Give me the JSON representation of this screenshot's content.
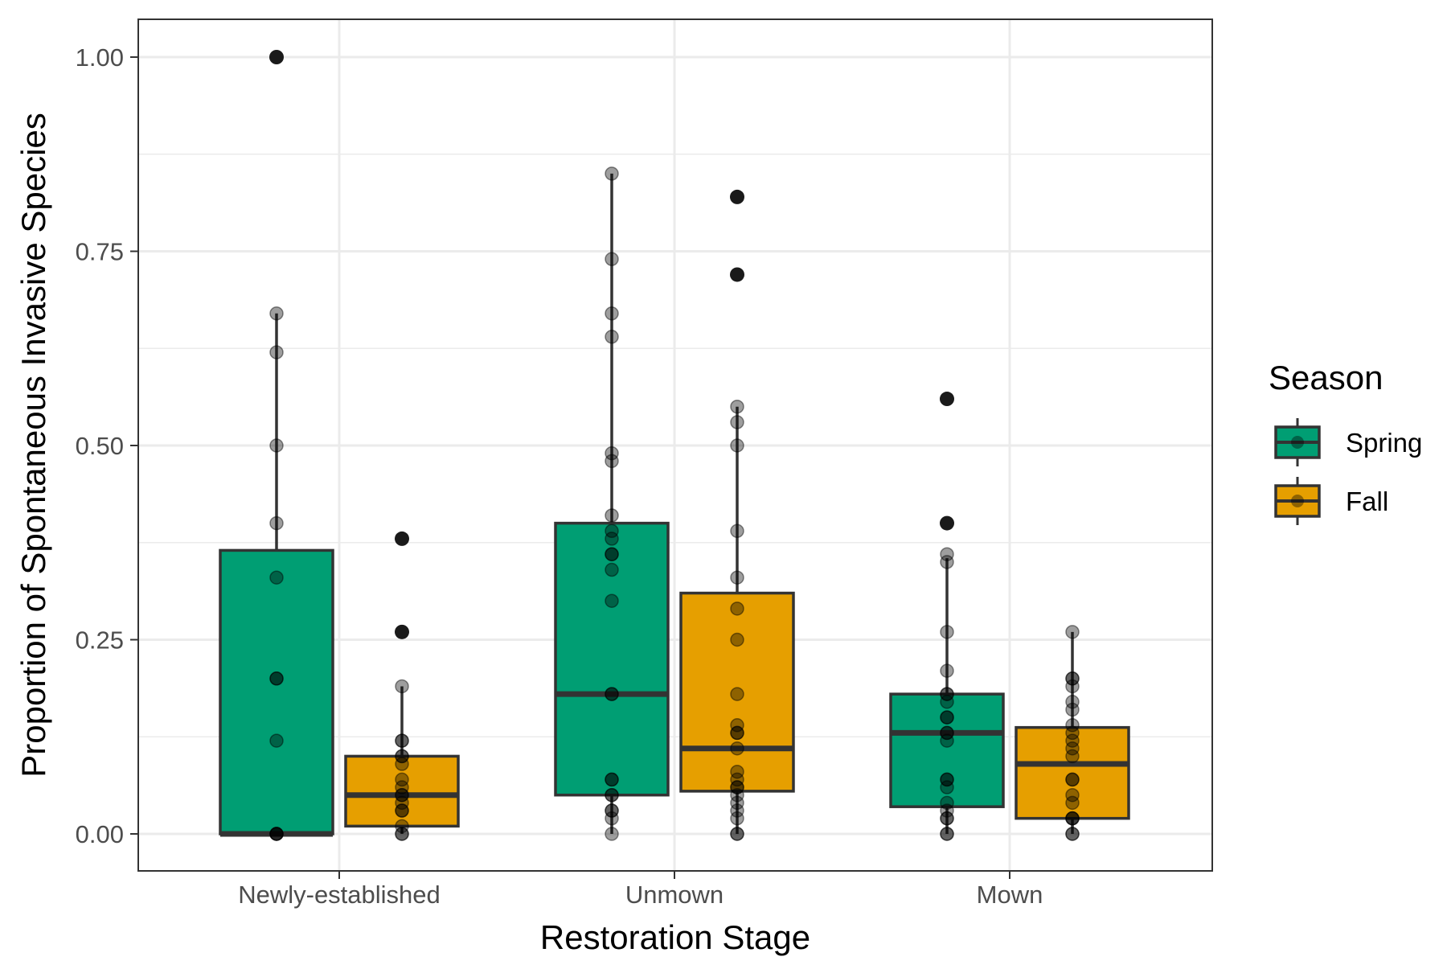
{
  "chart_data": {
    "type": "box",
    "xlabel": "Restoration Stage",
    "ylabel": "Proportion of Spontaneous Invasive Species",
    "categories": [
      "Newly-established",
      "Unmown",
      "Mown"
    ],
    "ylim": [
      -0.05,
      1.05
    ],
    "yticks": [
      0,
      0.25,
      0.5,
      0.75,
      1.0
    ],
    "ytick_labels": [
      "0.00",
      "0.25",
      "0.50",
      "0.75",
      "1.00"
    ],
    "grid": true,
    "legend": {
      "title": "Season",
      "position": "right"
    },
    "series": [
      {
        "name": "Spring",
        "color": "#009E73",
        "boxes": [
          {
            "category": "Newly-established",
            "whisker_low": 0.0,
            "q1": 0.0,
            "median": 0.0,
            "q3": 0.365,
            "whisker_high": 0.67,
            "outliers": [
              1.0
            ],
            "points": [
              0.67,
              0.62,
              0.5,
              0.4,
              0.33,
              0.2,
              0.2,
              0.12,
              0.0,
              0.0,
              0.0,
              0.0
            ]
          },
          {
            "category": "Unmown",
            "whisker_low": 0.0,
            "q1": 0.05,
            "median": 0.18,
            "q3": 0.4,
            "whisker_high": 0.85,
            "outliers": [],
            "points": [
              0.85,
              0.74,
              0.67,
              0.64,
              0.49,
              0.48,
              0.41,
              0.39,
              0.38,
              0.36,
              0.36,
              0.34,
              0.3,
              0.18,
              0.18,
              0.07,
              0.07,
              0.05,
              0.05,
              0.03,
              0.03,
              0.02,
              0.0
            ]
          },
          {
            "category": "Mown",
            "whisker_low": 0.0,
            "q1": 0.035,
            "median": 0.13,
            "q3": 0.18,
            "whisker_high": 0.355,
            "outliers": [
              0.56,
              0.4
            ],
            "points": [
              0.36,
              0.35,
              0.26,
              0.21,
              0.18,
              0.18,
              0.17,
              0.15,
              0.15,
              0.13,
              0.13,
              0.12,
              0.07,
              0.07,
              0.06,
              0.04,
              0.03,
              0.02,
              0.02,
              0.0,
              0.0
            ]
          }
        ]
      },
      {
        "name": "Fall",
        "color": "#E69F00",
        "boxes": [
          {
            "category": "Newly-established",
            "whisker_low": 0.0,
            "q1": 0.01,
            "median": 0.05,
            "q3": 0.1,
            "whisker_high": 0.19,
            "outliers": [
              0.38,
              0.26
            ],
            "points": [
              0.19,
              0.12,
              0.12,
              0.1,
              0.1,
              0.09,
              0.07,
              0.06,
              0.05,
              0.05,
              0.04,
              0.03,
              0.03,
              0.01,
              0.0,
              0.0
            ]
          },
          {
            "category": "Unmown",
            "whisker_low": 0.0,
            "q1": 0.055,
            "median": 0.11,
            "q3": 0.31,
            "whisker_high": 0.55,
            "outliers": [
              0.82,
              0.72
            ],
            "points": [
              0.55,
              0.53,
              0.5,
              0.39,
              0.33,
              0.29,
              0.25,
              0.18,
              0.14,
              0.13,
              0.13,
              0.11,
              0.08,
              0.07,
              0.06,
              0.06,
              0.05,
              0.04,
              0.03,
              0.02,
              0.0,
              0.0
            ]
          },
          {
            "category": "Mown",
            "whisker_low": 0.0,
            "q1": 0.02,
            "median": 0.09,
            "q3": 0.137,
            "whisker_high": 0.26,
            "outliers": [],
            "points": [
              0.26,
              0.2,
              0.2,
              0.19,
              0.17,
              0.16,
              0.14,
              0.13,
              0.12,
              0.11,
              0.1,
              0.07,
              0.07,
              0.05,
              0.04,
              0.02,
              0.02,
              0.02,
              0.0,
              0.0
            ]
          }
        ]
      }
    ]
  }
}
